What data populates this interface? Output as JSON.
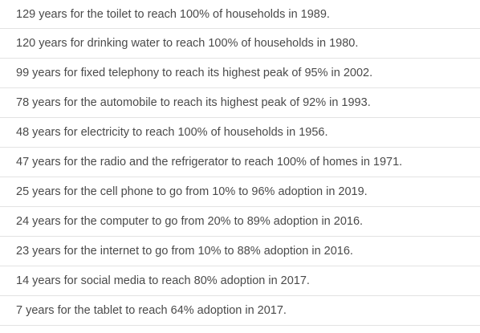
{
  "facts": [
    "129 years for the toilet to reach 100% of households in 1989.",
    "120 years for drinking water to reach 100% of households in 1980.",
    "99 years for fixed telephony to reach its highest peak of 95% in 2002.",
    "78 years for the automobile to reach its highest peak of 92% in 1993.",
    "48 years for electricity to reach 100% of households in 1956.",
    "47 years for the radio and the refrigerator to reach 100% of homes in 1971.",
    "25 years for the cell phone to go from 10% to 96% adoption in 2019.",
    "24 years for the computer to go from 20% to 89% adoption in 2016.",
    "23 years for the internet to go from 10% to 88% adoption in 2016.",
    "14 years for social media to reach 80% adoption in 2017.",
    "7 years for the tablet to reach 64% adoption in 2017."
  ]
}
